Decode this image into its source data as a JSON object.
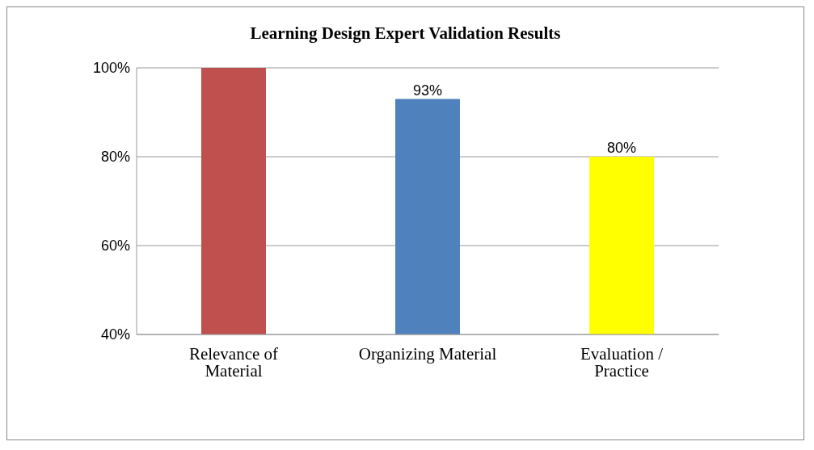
{
  "chart_data": {
    "type": "bar",
    "title": "Learning Design Expert Validation Results",
    "categories": [
      "Relevance of Material",
      "Organizing Material",
      "Evaluation / Practice"
    ],
    "values": [
      100,
      93,
      80
    ],
    "colors": [
      "#c0504d",
      "#4f81bd",
      "#ffff00"
    ],
    "value_labels": [
      null,
      "93%",
      "80%"
    ],
    "ylim": [
      40,
      100
    ],
    "yticks": [
      {
        "value": 40,
        "label": "40%"
      },
      {
        "value": 60,
        "label": "60%"
      },
      {
        "value": 80,
        "label": "80%"
      },
      {
        "value": 100,
        "label": "100%"
      }
    ],
    "grid": "y"
  }
}
